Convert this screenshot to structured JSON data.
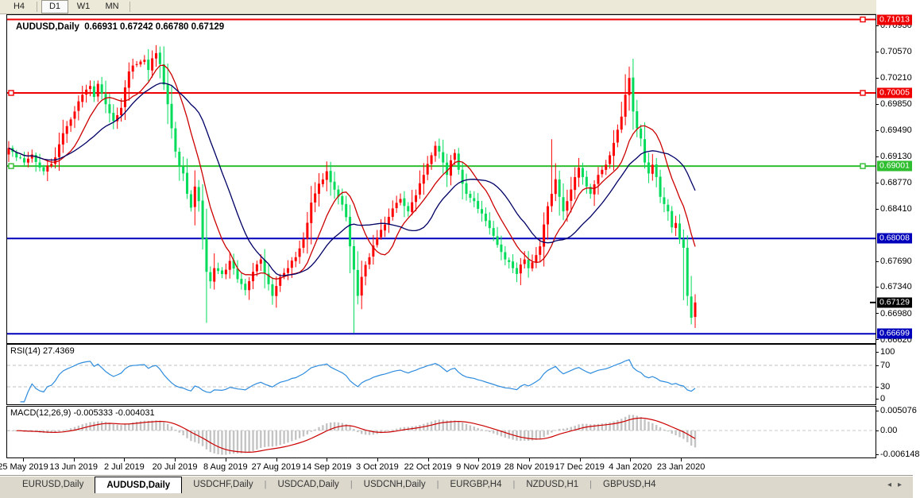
{
  "toolbar": {
    "buttons": [
      "H4",
      "D1",
      "W1",
      "MN"
    ],
    "active": "D1"
  },
  "chart": {
    "title_symbol": "AUDUSD,Daily",
    "title_ohlc": "0.66931 0.67242 0.66780 0.67129",
    "dropdown_icon": "▼",
    "colors": {
      "up": "#ff0000",
      "down": "#00dc5a",
      "ma_fast": "#cc0000",
      "ma_slow": "#000066",
      "line_red": "#ee0000",
      "line_green": "#2fbe2f",
      "line_blue": "#0000bb",
      "frame": "#000000"
    },
    "ma": {
      "fast_period": 10,
      "slow_period": 20
    },
    "price_axis": {
      "ticks": [
        "0.70930",
        "0.70570",
        "0.70210",
        "0.69850",
        "0.69490",
        "0.69130",
        "0.68770",
        "0.68410",
        "0.67690",
        "0.67340",
        "0.66980",
        "0.66620"
      ],
      "badges": [
        {
          "value": "0.71013",
          "color": "#ee0000"
        },
        {
          "value": "0.70005",
          "color": "#ee0000"
        },
        {
          "value": "0.69001",
          "color": "#2fbe2f"
        },
        {
          "value": "0.68008",
          "color": "#0000bb"
        },
        {
          "value": "0.67129",
          "color": "#000000"
        },
        {
          "value": "0.66699",
          "color": "#0000bb"
        }
      ]
    }
  },
  "chart_data": {
    "type": "candlestick",
    "symbol": "AUDUSD",
    "timeframe": "Daily",
    "title": "AUDUSD,Daily",
    "last_bar": {
      "open": 0.66931,
      "high": 0.67242,
      "low": 0.6678,
      "close": 0.67129
    },
    "bars": 178,
    "price_range_visible": [
      0.6662,
      0.7093
    ],
    "horizontal_lines": [
      {
        "price": 0.71013,
        "color": "red"
      },
      {
        "price": 0.70005,
        "color": "red"
      },
      {
        "price": 0.69001,
        "color": "green"
      },
      {
        "price": 0.68008,
        "color": "blue"
      },
      {
        "price": 0.66699,
        "color": "blue"
      }
    ],
    "x_labels": [
      "25 May 2019",
      "13 Jun 2019",
      "2 Jul 2019",
      "20 Jul 2019",
      "8 Aug 2019",
      "27 Aug 2019",
      "14 Sep 2019",
      "3 Oct 2019",
      "22 Oct 2019",
      "9 Nov 2019",
      "28 Nov 2019",
      "17 Dec 2019",
      "4 Jan 2020",
      "23 Jan 2020"
    ],
    "close_keyframes": [
      [
        0,
        0.6925
      ],
      [
        2,
        0.6912
      ],
      [
        4,
        0.6905
      ],
      [
        6,
        0.6916
      ],
      [
        8,
        0.6898
      ],
      [
        9,
        0.6893
      ],
      [
        11,
        0.6903
      ],
      [
        12,
        0.6912
      ],
      [
        13,
        0.693
      ],
      [
        15,
        0.6955
      ],
      [
        17,
        0.6975
      ],
      [
        19,
        0.6998
      ],
      [
        20,
        0.7005
      ],
      [
        21,
        0.701
      ],
      [
        22,
        0.6995
      ],
      [
        23,
        0.7013
      ],
      [
        24,
        0.7
      ],
      [
        25,
        0.6985
      ],
      [
        27,
        0.6962
      ],
      [
        28,
        0.697
      ],
      [
        29,
        0.698
      ],
      [
        30,
        0.7008
      ],
      [
        31,
        0.703
      ],
      [
        33,
        0.704
      ],
      [
        35,
        0.7046
      ],
      [
        36,
        0.7032
      ],
      [
        37,
        0.7048
      ],
      [
        38,
        0.7055
      ],
      [
        39,
        0.704
      ],
      [
        40,
        0.7012
      ],
      [
        41,
        0.6985
      ],
      [
        42,
        0.6952
      ],
      [
        43,
        0.692
      ],
      [
        44,
        0.69
      ],
      [
        45,
        0.689
      ],
      [
        46,
        0.6862
      ],
      [
        47,
        0.6843
      ],
      [
        48,
        0.6872
      ],
      [
        49,
        0.6852
      ],
      [
        50,
        0.68
      ],
      [
        51,
        0.6755
      ],
      [
        52,
        0.6742
      ],
      [
        53,
        0.676
      ],
      [
        55,
        0.6752
      ],
      [
        57,
        0.677
      ],
      [
        59,
        0.6745
      ],
      [
        61,
        0.673
      ],
      [
        63,
        0.6755
      ],
      [
        65,
        0.6772
      ],
      [
        67,
        0.6738
      ],
      [
        68,
        0.6722
      ],
      [
        70,
        0.6748
      ],
      [
        72,
        0.676
      ],
      [
        74,
        0.6775
      ],
      [
        76,
        0.68
      ],
      [
        78,
        0.685
      ],
      [
        80,
        0.6876
      ],
      [
        82,
        0.6893
      ],
      [
        83,
        0.6878
      ],
      [
        85,
        0.6858
      ],
      [
        87,
        0.683
      ],
      [
        88,
        0.679
      ],
      [
        89,
        0.6758
      ],
      [
        90,
        0.6722
      ],
      [
        91,
        0.6748
      ],
      [
        93,
        0.6775
      ],
      [
        95,
        0.6802
      ],
      [
        97,
        0.682
      ],
      [
        99,
        0.6842
      ],
      [
        101,
        0.6855
      ],
      [
        103,
        0.6838
      ],
      [
        105,
        0.686
      ],
      [
        107,
        0.6888
      ],
      [
        109,
        0.6915
      ],
      [
        110,
        0.6928
      ],
      [
        111,
        0.692
      ],
      [
        112,
        0.6905
      ],
      [
        113,
        0.6888
      ],
      [
        114,
        0.6908
      ],
      [
        115,
        0.6918
      ],
      [
        116,
        0.6895
      ],
      [
        118,
        0.6862
      ],
      [
        120,
        0.6852
      ],
      [
        122,
        0.6835
      ],
      [
        124,
        0.6815
      ],
      [
        126,
        0.6792
      ],
      [
        128,
        0.6772
      ],
      [
        130,
        0.676
      ],
      [
        131,
        0.6752
      ],
      [
        132,
        0.6765
      ],
      [
        133,
        0.6772
      ],
      [
        134,
        0.676
      ],
      [
        135,
        0.6768
      ],
      [
        136,
        0.6778
      ],
      [
        137,
        0.679
      ],
      [
        138,
        0.682
      ],
      [
        139,
        0.6845
      ],
      [
        140,
        0.6862
      ],
      [
        141,
        0.6882
      ],
      [
        142,
        0.6858
      ],
      [
        143,
        0.6838
      ],
      [
        144,
        0.6852
      ],
      [
        145,
        0.6868
      ],
      [
        146,
        0.6885
      ],
      [
        147,
        0.6898
      ],
      [
        148,
        0.6885
      ],
      [
        149,
        0.6872
      ],
      [
        150,
        0.6862
      ],
      [
        151,
        0.6875
      ],
      [
        152,
        0.6888
      ],
      [
        153,
        0.6895
      ],
      [
        154,
        0.6902
      ],
      [
        155,
        0.6915
      ],
      [
        156,
        0.6932
      ],
      [
        157,
        0.695
      ],
      [
        158,
        0.6968
      ],
      [
        159,
        0.6998
      ],
      [
        160,
        0.7021
      ],
      [
        161,
        0.6975
      ],
      [
        162,
        0.6952
      ],
      [
        163,
        0.6938
      ],
      [
        164,
        0.6905
      ],
      [
        165,
        0.689
      ],
      [
        166,
        0.6902
      ],
      [
        167,
        0.6885
      ],
      [
        168,
        0.6858
      ],
      [
        169,
        0.6848
      ],
      [
        170,
        0.6838
      ],
      [
        171,
        0.6816
      ],
      [
        172,
        0.6822
      ],
      [
        173,
        0.68
      ],
      [
        174,
        0.6788
      ],
      [
        175,
        0.6722
      ],
      [
        176,
        0.6692
      ],
      [
        177,
        0.67129
      ]
    ],
    "extreme_events": [
      {
        "i": 38,
        "high": 0.7066
      },
      {
        "i": 51,
        "low": 0.6685
      },
      {
        "i": 89,
        "low": 0.6671
      },
      {
        "i": 110,
        "high": 0.6932
      },
      {
        "i": 140,
        "high": 0.6937
      },
      {
        "i": 160,
        "high": 0.7032
      },
      {
        "i": 174,
        "low": 0.6716
      }
    ]
  },
  "rsi": {
    "label": "RSI(14) 27.4369",
    "period": 14,
    "value": 27.4369,
    "axis_labels": [
      "100",
      "70",
      "30",
      "0"
    ],
    "levels": [
      70,
      30
    ],
    "line_color": "#2e8cde"
  },
  "macd": {
    "label": "MACD(12,26,9) -0.005333 -0.004031",
    "fast": 12,
    "slow": 26,
    "signal": 9,
    "macd_value": -0.005333,
    "signal_value": -0.004031,
    "axis_labels": [
      "0.005076",
      "0.00",
      "-0.006148"
    ],
    "hist_color": "#c4c4c4",
    "signal_color": "#cc0000"
  },
  "tabs": {
    "items": [
      "EURUSD,Daily",
      "AUDUSD,Daily",
      "USDCHF,Daily",
      "USDCAD,Daily",
      "USDCNH,Daily",
      "EURGBP,H4",
      "NZDUSD,H1",
      "GBPUSD,H4"
    ],
    "active": "AUDUSD,Daily",
    "scroll_left": "◂",
    "scroll_right": "▸"
  }
}
